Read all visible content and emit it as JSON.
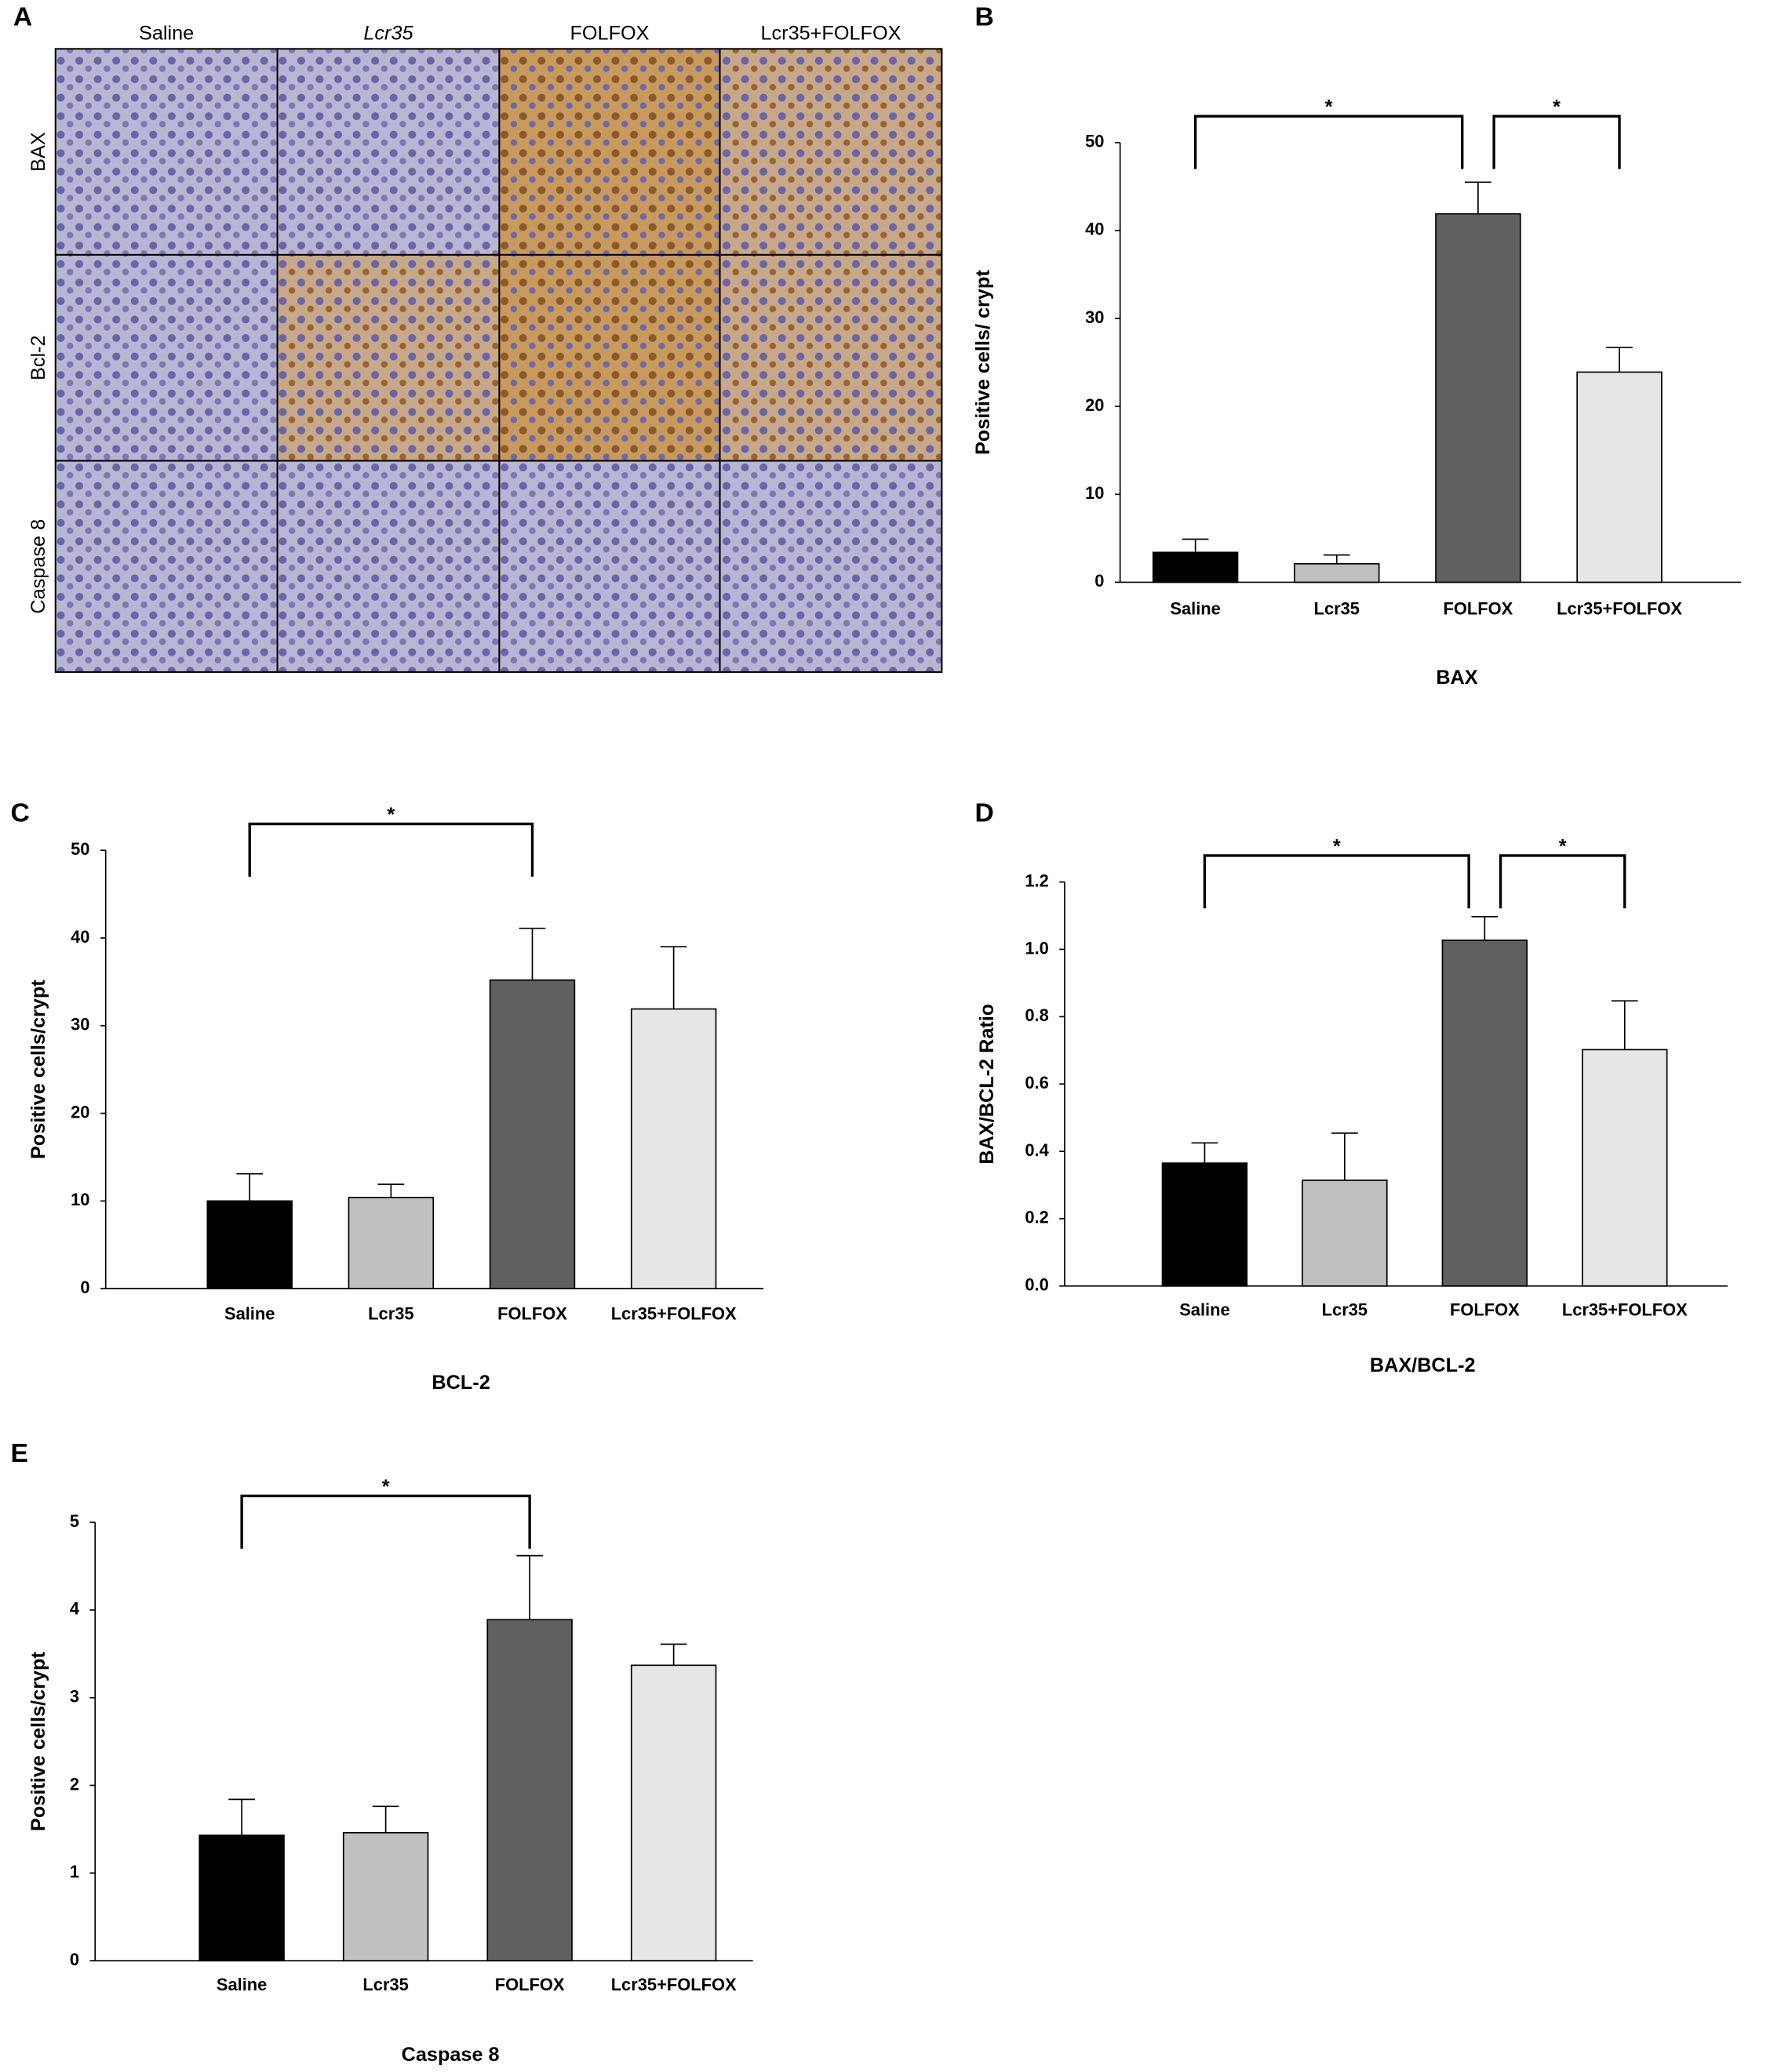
{
  "panel_a": {
    "letter": "A",
    "columns": [
      "Saline",
      "Lcr35",
      "FOLFOX",
      "Lcr35+FOLFOX"
    ],
    "rows": [
      "BAX",
      "Bcl-2",
      "Caspase 8"
    ]
  },
  "chart_data": [
    {
      "type": "bar",
      "panel": "B",
      "title": "BAX",
      "y_label": "Positive cells/ crypt",
      "categories": [
        "Saline",
        "Lcr35",
        "FOLFOX",
        "Lcr35+FOLFOX"
      ],
      "values": [
        3.4,
        2.1,
        41.9,
        23.9
      ],
      "errors": [
        1.5,
        1.0,
        3.6,
        2.8
      ],
      "colors": [
        "#000000",
        "#c0c0c0",
        "#606060",
        "#e6e6e6"
      ],
      "ylim": [
        0,
        50
      ],
      "yticks": [
        0,
        10,
        20,
        30,
        40,
        50
      ],
      "significance": [
        {
          "from": "Saline",
          "to": "FOLFOX",
          "label": "*"
        },
        {
          "from": "FOLFOX",
          "to": "Lcr35+FOLFOX",
          "label": "*"
        }
      ]
    },
    {
      "type": "bar",
      "panel": "C",
      "title": "BCL-2",
      "y_label": "Positive cells/crypt",
      "categories": [
        "Saline",
        "Lcr35",
        "FOLFOX",
        "Lcr35+FOLFOX"
      ],
      "values": [
        10.0,
        10.4,
        35.2,
        31.9
      ],
      "errors": [
        3.1,
        1.5,
        5.9,
        7.1
      ],
      "colors": [
        "#000000",
        "#c0c0c0",
        "#606060",
        "#e6e6e6"
      ],
      "ylim": [
        0,
        50
      ],
      "yticks": [
        0,
        10,
        20,
        30,
        40,
        50
      ],
      "significance": [
        {
          "from": "Saline",
          "to": "FOLFOX",
          "label": "*"
        }
      ]
    },
    {
      "type": "bar",
      "panel": "D",
      "title": "BAX/BCL-2",
      "y_label": "BAX/BCL-2 Ratio",
      "categories": [
        "Saline",
        "Lcr35",
        "FOLFOX",
        "Lcr35+FOLFOX"
      ],
      "values": [
        0.365,
        0.314,
        1.027,
        0.702
      ],
      "errors": [
        0.06,
        0.14,
        0.07,
        0.145
      ],
      "colors": [
        "#000000",
        "#c0c0c0",
        "#606060",
        "#e6e6e6"
      ],
      "ylim": [
        0,
        1.2
      ],
      "yticks": [
        {
          "value": 0,
          "label": "0.0"
        },
        0.2,
        0.4,
        0.6,
        0.8,
        {
          "value": 1,
          "label": "1.0"
        },
        1.2
      ],
      "significance": [
        {
          "from": "Saline",
          "to": "FOLFOX",
          "label": "*"
        },
        {
          "from": "FOLFOX",
          "to": "Lcr35+FOLFOX",
          "label": "*"
        }
      ]
    },
    {
      "type": "bar",
      "panel": "E",
      "title": "Caspase 8",
      "y_label": "Positive cells/crypt",
      "categories": [
        "Saline",
        "Lcr35",
        "FOLFOX",
        "Lcr35+FOLFOX"
      ],
      "values": [
        1.43,
        1.46,
        3.89,
        3.37
      ],
      "errors": [
        0.41,
        0.3,
        0.73,
        0.24
      ],
      "colors": [
        "#000000",
        "#c0c0c0",
        "#606060",
        "#e6e6e6"
      ],
      "ylim": [
        0,
        5
      ],
      "yticks": [
        0,
        1,
        2,
        3,
        4,
        5
      ],
      "significance": [
        {
          "from": "Saline",
          "to": "FOLFOX",
          "label": "*"
        }
      ]
    }
  ]
}
